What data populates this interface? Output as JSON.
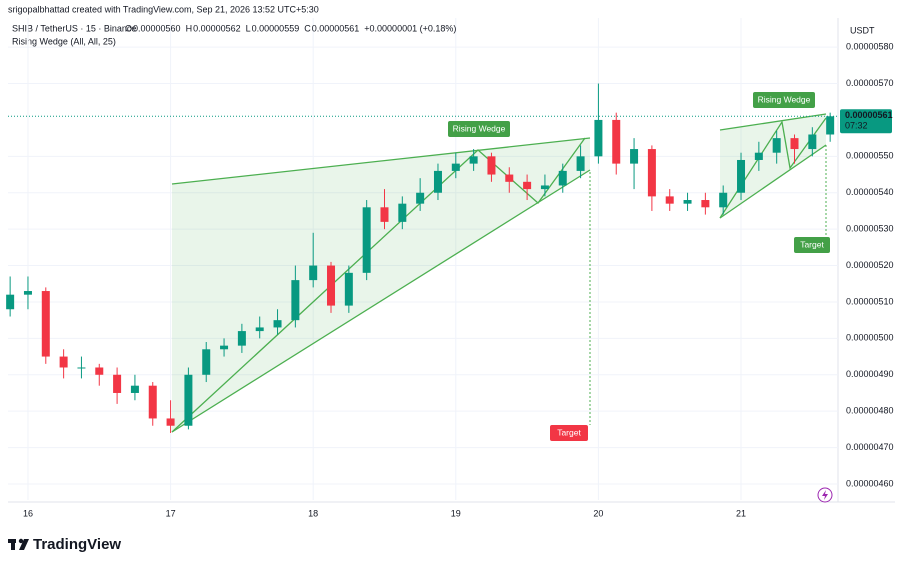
{
  "header": {
    "credit": "srigopalbhattad created with TradingView.com, Sep 21, 2026 13:52 UTC+5:30",
    "symbol": "SHIB / TetherUS · 15 · Binance",
    "ohlc": [
      {
        "key": "O",
        "value": "0.00000560"
      },
      {
        "key": "H",
        "value": "0.00000562"
      },
      {
        "key": "L",
        "value": "0.00000559"
      },
      {
        "key": "C",
        "value": "0.00000561"
      }
    ],
    "change": "+0.00000001 (+0.18%)",
    "indicator": "Rising Wedge (All, All, 25)"
  },
  "chart_data": {
    "type": "candlestick",
    "currency": "USDT",
    "up_color": "#089981",
    "down_color": "#f23645",
    "grid": true,
    "x": [
      15.875,
      16,
      16.125,
      16.25,
      16.375,
      16.5,
      16.625,
      16.75,
      16.875,
      17,
      17.125,
      17.25,
      17.375,
      17.5,
      17.625,
      17.75,
      17.875,
      18,
      18.125,
      18.25,
      18.375,
      18.5,
      18.625,
      18.75,
      18.875,
      19,
      19.125,
      19.25,
      19.375,
      19.5,
      19.625,
      19.75,
      19.875,
      20,
      20.125,
      20.25,
      20.375,
      20.5,
      20.625,
      20.75,
      20.875,
      21,
      21.125,
      21.25,
      21.375,
      21.5,
      21.625
    ],
    "open": [
      5.08e-06,
      5.12e-06,
      5.13e-06,
      4.95e-06,
      4.92e-06,
      4.92e-06,
      4.9e-06,
      4.85e-06,
      4.87e-06,
      4.78e-06,
      4.76e-06,
      4.9e-06,
      4.97e-06,
      4.98e-06,
      5.02e-06,
      5.03e-06,
      5.05e-06,
      5.16e-06,
      5.2e-06,
      5.09e-06,
      5.18e-06,
      5.36e-06,
      5.32e-06,
      5.37e-06,
      5.4e-06,
      5.46e-06,
      5.48e-06,
      5.5e-06,
      5.45e-06,
      5.43e-06,
      5.41e-06,
      5.42e-06,
      5.46e-06,
      5.5e-06,
      5.6e-06,
      5.48e-06,
      5.52e-06,
      5.39e-06,
      5.37e-06,
      5.38e-06,
      5.36e-06,
      5.4e-06,
      5.49e-06,
      5.51e-06,
      5.55e-06,
      5.52e-06,
      5.56e-06
    ],
    "high": [
      5.17e-06,
      5.17e-06,
      5.14e-06,
      4.97e-06,
      4.95e-06,
      4.93e-06,
      4.92e-06,
      4.9e-06,
      4.88e-06,
      4.83e-06,
      4.92e-06,
      4.99e-06,
      5e-06,
      5.04e-06,
      5.06e-06,
      5.08e-06,
      5.2e-06,
      5.29e-06,
      5.21e-06,
      5.2e-06,
      5.38e-06,
      5.41e-06,
      5.39e-06,
      5.44e-06,
      5.48e-06,
      5.51e-06,
      5.52e-06,
      5.51e-06,
      5.47e-06,
      5.45e-06,
      5.45e-06,
      5.48e-06,
      5.53e-06,
      5.7e-06,
      5.62e-06,
      5.55e-06,
      5.53e-06,
      5.41e-06,
      5.4e-06,
      5.4e-06,
      5.42e-06,
      5.51e-06,
      5.54e-06,
      5.57e-06,
      5.56e-06,
      5.58e-06,
      5.62e-06
    ],
    "low": [
      5.06e-06,
      5.08e-06,
      4.93e-06,
      4.89e-06,
      4.89e-06,
      4.87e-06,
      4.82e-06,
      4.83e-06,
      4.76e-06,
      4.74e-06,
      4.75e-06,
      4.88e-06,
      4.95e-06,
      4.96e-06,
      5e-06,
      5.01e-06,
      5.03e-06,
      5.14e-06,
      5.07e-06,
      5.07e-06,
      5.16e-06,
      5.3e-06,
      5.3e-06,
      5.35e-06,
      5.38e-06,
      5.44e-06,
      5.46e-06,
      5.43e-06,
      5.4e-06,
      5.38e-06,
      5.39e-06,
      5.4e-06,
      5.44e-06,
      5.48e-06,
      5.45e-06,
      5.41e-06,
      5.35e-06,
      5.35e-06,
      5.35e-06,
      5.34e-06,
      5.34e-06,
      5.38e-06,
      5.46e-06,
      5.48e-06,
      5.48e-06,
      5.5e-06,
      5.54e-06
    ],
    "close": [
      5.12e-06,
      5.13e-06,
      4.95e-06,
      4.92e-06,
      4.92e-06,
      4.9e-06,
      4.85e-06,
      4.87e-06,
      4.78e-06,
      4.76e-06,
      4.9e-06,
      4.97e-06,
      4.98e-06,
      5.02e-06,
      5.03e-06,
      5.05e-06,
      5.16e-06,
      5.2e-06,
      5.09e-06,
      5.18e-06,
      5.36e-06,
      5.32e-06,
      5.37e-06,
      5.4e-06,
      5.46e-06,
      5.48e-06,
      5.5e-06,
      5.45e-06,
      5.43e-06,
      5.41e-06,
      5.42e-06,
      5.46e-06,
      5.5e-06,
      5.6e-06,
      5.48e-06,
      5.52e-06,
      5.39e-06,
      5.37e-06,
      5.38e-06,
      5.36e-06,
      5.4e-06,
      5.49e-06,
      5.51e-06,
      5.55e-06,
      5.52e-06,
      5.56e-06,
      5.61e-06
    ],
    "xlim": [
      15.86,
      21.68
    ],
    "xticks": [
      16,
      17,
      18,
      19,
      20,
      21
    ],
    "ylim": [
      4.556e-06,
      5.88e-06
    ],
    "yticks": [
      {
        "value": 5.8e-06,
        "label": "0.00000580"
      },
      {
        "value": 5.7e-06,
        "label": "0.00000570"
      },
      {
        "value": 5.5e-06,
        "label": "0.00000550"
      },
      {
        "value": 5.4e-06,
        "label": "0.00000540"
      },
      {
        "value": 5.3e-06,
        "label": "0.00000530"
      },
      {
        "value": 5.2e-06,
        "label": "0.00000520"
      },
      {
        "value": 5.1e-06,
        "label": "0.00000510"
      },
      {
        "value": 5e-06,
        "label": "0.00000500"
      },
      {
        "value": 4.9e-06,
        "label": "0.00000490"
      },
      {
        "value": 4.8e-06,
        "label": "0.00000480"
      },
      {
        "value": 4.7e-06,
        "label": "0.00000470"
      },
      {
        "value": 4.6e-06,
        "label": "0.00000460"
      }
    ],
    "last_price": {
      "value": 5.61e-06,
      "label": "0.00000561"
    },
    "countdown": "07:32",
    "annotations": [
      "Rising Wedge",
      "Target",
      "Rising Wedge",
      "Target"
    ]
  },
  "footer": {
    "logo": "TradingView"
  }
}
